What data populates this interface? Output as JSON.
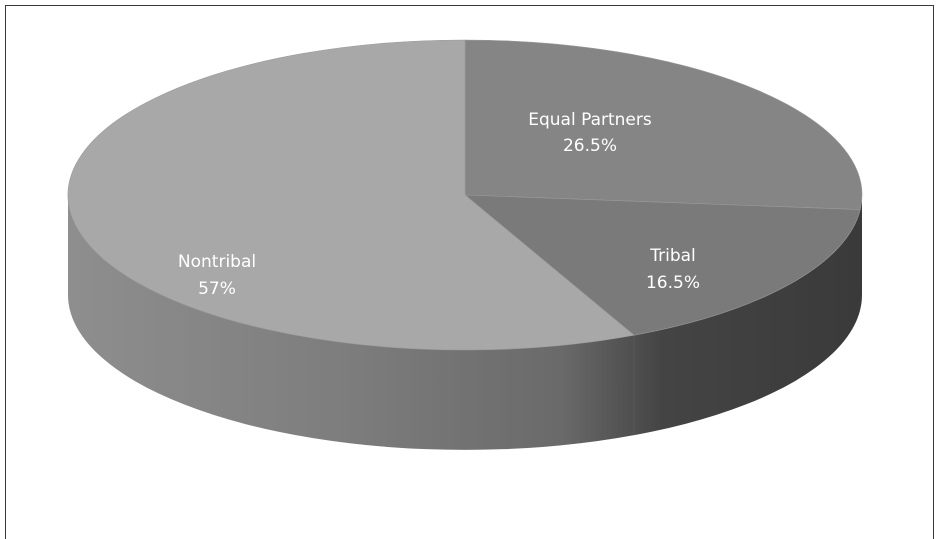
{
  "chart_data": {
    "type": "pie",
    "style": "3d",
    "slices": [
      {
        "label": "Equal Partners",
        "value_text": "26.5%",
        "value": 26.5,
        "color": "#858585"
      },
      {
        "label": "Tribal",
        "value_text": "16.5%",
        "value": 16.5,
        "color": "#7a7a7a"
      },
      {
        "label": "Nontribal",
        "value_text": "57%",
        "value": 57,
        "color": "#a8a8a8"
      }
    ]
  }
}
